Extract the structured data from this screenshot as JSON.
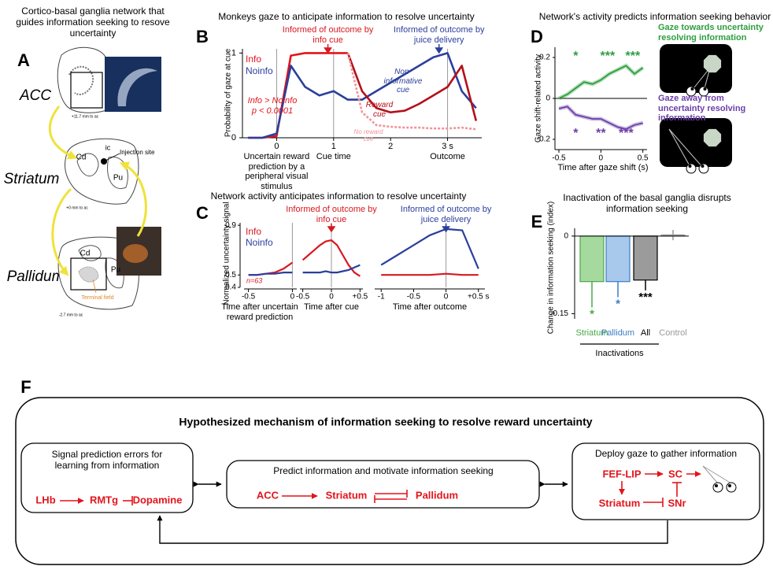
{
  "panel_a": {
    "letter": "A",
    "title": "Cortico-basal ganglia network that guides information seeking to resove uncertainty",
    "regions": [
      "ACC",
      "Striatum",
      "Pallidum"
    ],
    "labels": {
      "acc_level": "+11.7 mm to ac",
      "cd1": "Cd",
      "ic": "ic",
      "injection": "Injection site",
      "pu1": "Pu",
      "str_level": "+0 mm to ac",
      "cd2": "Cd",
      "pu2": "Pu",
      "terminal": "Terminal field",
      "pal_level": "-2.7 mm to ac"
    }
  },
  "chart_data": [
    {
      "type": "line",
      "panel_label": "B",
      "title": "Monkeys gaze to anticipate information to resolve uncertainty",
      "ylabel": "Probability of gaze at cue",
      "x": [
        -0.5,
        -0.25,
        0,
        0.25,
        0.5,
        0.75,
        1,
        1.25,
        1.5,
        1.75,
        2,
        2.25,
        2.5,
        2.75,
        3,
        3.25,
        3.5
      ],
      "xlim": [
        -0.6,
        3.6
      ],
      "xticks": [
        0,
        1,
        2,
        {
          "value": 3,
          "label": "3 s"
        }
      ],
      "ylim": [
        0,
        1.05
      ],
      "yticks": [
        0,
        1
      ],
      "x_annotations": [
        {
          "value": 0,
          "label": "Uncertain reward prediction by a peripheral visual stimulus"
        },
        {
          "value": 1,
          "label": "Cue time"
        },
        {
          "value": 3,
          "label": "Outcome"
        }
      ],
      "events": [
        {
          "x": 0.9,
          "label": "Informed of outcome by info cue",
          "color": "#d8181f"
        },
        {
          "x": 2.85,
          "label": "Informed of outcome by juice delivery",
          "color": "#2b3f9c"
        }
      ],
      "series": [
        {
          "name": "Info",
          "color": "#e3141b",
          "values": [
            0,
            0,
            0.02,
            0.97,
            1,
            1,
            1,
            1,
            null,
            null,
            null,
            null,
            null,
            null,
            null,
            null,
            null
          ]
        },
        {
          "name": "Noinfo",
          "color": "#2b3f9c",
          "values": [
            0,
            0,
            0.05,
            0.85,
            0.6,
            0.5,
            0.55,
            0.45,
            0.45,
            0.55,
            0.65,
            0.75,
            0.85,
            0.95,
            1,
            0.55,
            0.35
          ]
        },
        {
          "name": "Reward cue",
          "color": "#b3101b",
          "inline": true,
          "values": [
            null,
            null,
            null,
            null,
            null,
            null,
            null,
            1,
            0.55,
            0.35,
            0.3,
            0.32,
            0.4,
            0.5,
            0.6,
            0.85,
            0.2
          ]
        },
        {
          "name": "No reward cue",
          "color": "#f2939a",
          "inline": true,
          "dash": true,
          "values": [
            null,
            null,
            null,
            null,
            null,
            null,
            null,
            1,
            0.3,
            0.15,
            0.13,
            0.12,
            0.12,
            0.11,
            0.11,
            0.12,
            0.1
          ]
        }
      ],
      "stat_note": [
        "Info > Noinfo",
        "p < 0.0001"
      ],
      "annotations": [
        "Non-informative cue"
      ]
    },
    {
      "type": "line",
      "panel_label": "C",
      "title": "Network activity anticipates information to resolve uncertainty",
      "ylabel": "Normalized uncertainty signal",
      "ylim": [
        0.4,
        0.92
      ],
      "yticks": [
        0.4,
        0.5,
        0.9
      ],
      "series": [
        {
          "name": "Info",
          "color": "#d8181f"
        },
        {
          "name": "Noinfo",
          "color": "#2b3f9c"
        }
      ],
      "note": "n=63",
      "segments": [
        {
          "xlabel": "Time after uncertain reward prediction",
          "xlim": [
            -0.55,
            0.05
          ],
          "xticks": [
            -0.5,
            0
          ],
          "x": [
            -0.5,
            -0.4,
            -0.3,
            -0.2,
            -0.1,
            0
          ],
          "series": [
            {
              "values": [
                0.5,
                0.5,
                0.51,
                0.52,
                0.55,
                0.6
              ]
            },
            {
              "values": [
                0.5,
                0.5,
                0.51,
                0.51,
                0.52,
                0.52
              ]
            }
          ]
        },
        {
          "xlabel": "Time after cue",
          "xlim": [
            -0.55,
            0.55
          ],
          "xticks": [
            -0.5,
            0,
            {
              "value": 0.5,
              "label": "+0.5"
            }
          ],
          "x": [
            -0.5,
            -0.4,
            -0.3,
            -0.2,
            -0.1,
            0,
            0.1,
            0.2,
            0.3,
            0.4,
            0.5
          ],
          "event": {
            "x": 0,
            "label": "Informed of outcome by info cue",
            "color": "#d8181f"
          },
          "series": [
            {
              "values": [
                0.62,
                0.66,
                0.7,
                0.74,
                0.77,
                0.78,
                0.74,
                0.66,
                0.58,
                0.52,
                0.49
              ]
            },
            {
              "values": [
                0.52,
                0.52,
                0.52,
                0.52,
                0.53,
                0.52,
                0.52,
                0.53,
                0.54,
                0.56,
                0.58
              ]
            }
          ]
        },
        {
          "xlabel": "Time after outcome",
          "xlim": [
            -1.1,
            0.6
          ],
          "xticks": [
            -1,
            -0.5,
            0,
            {
              "value": 0.5,
              "label": "+0.5 s"
            }
          ],
          "x": [
            -1,
            -0.75,
            -0.5,
            -0.25,
            0,
            0.25,
            0.5
          ],
          "event": {
            "x": 0,
            "label": "Informed of outcome by juice delivery",
            "color": "#2b3f9c"
          },
          "series": [
            {
              "values": [
                0.5,
                0.5,
                0.5,
                0.5,
                0.51,
                0.5,
                0.5
              ]
            },
            {
              "values": [
                0.58,
                0.66,
                0.74,
                0.82,
                0.87,
                0.86,
                0.55
              ]
            }
          ]
        }
      ]
    },
    {
      "type": "line",
      "panel_label": "D",
      "title": "Network's activity predicts information seeking behavior",
      "xlabel": "Time after gaze shift (s)",
      "ylabel": "Gaze shift-related activity",
      "x": [
        -0.5,
        -0.4,
        -0.3,
        -0.2,
        -0.1,
        0,
        0.1,
        0.2,
        0.3,
        0.4,
        0.5
      ],
      "xlim": [
        -0.5,
        0.55
      ],
      "xticks": [
        -0.5,
        0,
        0.5
      ],
      "ylim": [
        -0.25,
        0.25
      ],
      "yticks": [
        -0.2,
        0,
        0.2
      ],
      "series": [
        {
          "name": "Gaze towards uncertainty resolving information",
          "color": "#2e9e3e",
          "values": [
            0,
            0.02,
            0.05,
            0.08,
            0.07,
            0.09,
            0.12,
            0.14,
            0.16,
            0.12,
            0.15
          ],
          "significance": [
            {
              "x": -0.3,
              "label": "*"
            },
            {
              "x": 0.08,
              "label": "***"
            },
            {
              "x": 0.38,
              "label": "***"
            }
          ]
        },
        {
          "name": "Gaze away from uncertainty resolving information",
          "color": "#6b3fa8",
          "values": [
            -0.05,
            -0.04,
            -0.08,
            -0.09,
            -0.1,
            -0.1,
            -0.12,
            -0.14,
            -0.15,
            -0.13,
            -0.12
          ],
          "significance": [
            {
              "x": -0.3,
              "label": "*"
            },
            {
              "x": 0,
              "label": "**"
            },
            {
              "x": 0.3,
              "label": "***"
            }
          ]
        }
      ]
    },
    {
      "type": "bar",
      "panel_label": "E",
      "title": "Inactivation of the basal ganglia disrupts information seeking",
      "ylabel": "Change in information seeking (index)",
      "categories": [
        "Striatum",
        "Pallidum",
        "All",
        "Control"
      ],
      "values": [
        -0.088,
        -0.088,
        -0.085,
        0.002
      ],
      "errors": [
        0.05,
        0.03,
        0.02,
        0.01
      ],
      "colors": [
        "#a6d99e",
        "#a8c8ec",
        "#9b9b9b",
        "#ffffff"
      ],
      "edge_colors": [
        "#4aa84a",
        "#3b7dc4",
        "#000000",
        "#9a9a9a"
      ],
      "significance": [
        "*",
        "*",
        "***",
        null
      ],
      "ylim": [
        -0.16,
        0.015
      ],
      "yticks": [
        0,
        -0.15
      ],
      "group_label": "Inactivations"
    }
  ],
  "panel_f": {
    "letter": "F",
    "title": "Hypothesized mechanism of information seeking to resolve reward uncertainty",
    "left": {
      "title": "Signal prediction errors for learning from information",
      "nodes": [
        "LHb",
        "RMTg",
        "Dopamine"
      ]
    },
    "middle": {
      "title": "Predict information and motivate information seeking",
      "nodes": [
        "ACC",
        "Striatum",
        "Pallidum"
      ]
    },
    "right": {
      "title": "Deploy gaze to gather information",
      "nodes": [
        "FEF-LIP",
        "SC",
        "Striatum",
        "SNr"
      ]
    }
  }
}
